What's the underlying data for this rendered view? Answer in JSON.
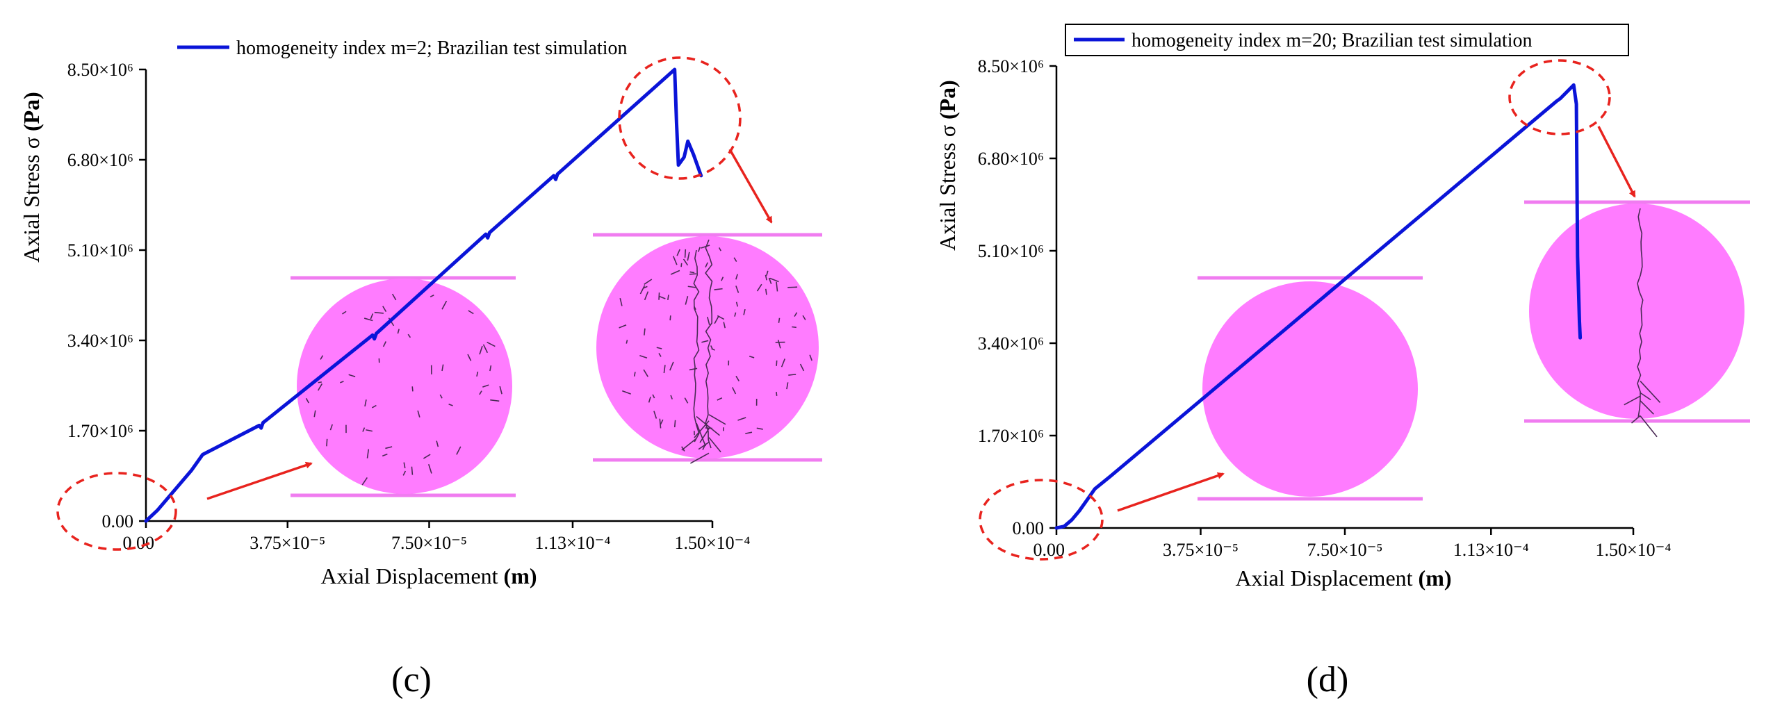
{
  "colors": {
    "series": "#0a14d8",
    "sample": "#ff7cff",
    "platen": "#f07cf0",
    "callout": "#e8231e",
    "axis": "#000000"
  },
  "chart_data": [
    {
      "type": "line",
      "panel_label": "(c)",
      "legend": "homogeneity index m=2; Brazilian test simulation",
      "xlabel_text": "Axial Displacement ",
      "xlabel_unit": "(m)",
      "ylabel_text": "Axial Stress σ ",
      "ylabel_unit": "(Pa)",
      "xlim": [
        0,
        0.00015
      ],
      "ylim": [
        0,
        8500000
      ],
      "x_ticks": [
        0,
        3.75e-05,
        7.5e-05,
        0.000113,
        0.00015
      ],
      "x_tick_labels": [
        "0.00",
        "3.75×10⁻⁵",
        "7.50×10⁻⁵",
        "1.13×10⁻⁴",
        "1.50×10⁻⁴"
      ],
      "y_ticks": [
        0,
        1700000,
        3400000,
        5100000,
        6800000,
        8500000
      ],
      "y_tick_labels": [
        "0.00",
        "1.70×10⁶",
        "3.40×10⁶",
        "5.10×10⁶",
        "6.80×10⁶",
        "8.50×10⁶"
      ],
      "series": [
        {
          "name": "homogeneity index m=2; Brazilian test simulation",
          "x": [
            0,
            3e-06,
            6e-06,
            9e-06,
            1.2e-05,
            1.5e-05,
            3e-05,
            3.05e-05,
            3.1e-05,
            6e-05,
            6.05e-05,
            6.1e-05,
            9e-05,
            9.05e-05,
            9.1e-05,
            0.000108,
            0.0001085,
            0.000109,
            0.00014,
            0.0001405,
            0.000141,
            0.0001425,
            0.0001435,
            0.000145,
            0.000147
          ],
          "y": [
            0,
            200000,
            450000,
            700000,
            950000,
            1250000,
            1800000,
            1750000,
            1850000,
            3500000,
            3430000,
            3530000,
            5400000,
            5330000,
            5430000,
            6500000,
            6430000,
            6530000,
            8500000,
            7500000,
            6700000,
            6850000,
            7150000,
            6900000,
            6500000
          ]
        }
      ],
      "annotations": [
        "origin callout",
        "peak callout",
        "sample before failure",
        "sample after failure with vertical cracks"
      ]
    },
    {
      "type": "line",
      "panel_label": "(d)",
      "legend": "homogeneity index m=20; Brazilian test simulation",
      "xlabel_text": "Axial Displacement ",
      "xlabel_unit": "(m)",
      "ylabel_text": "Axial Stress σ ",
      "ylabel_unit": "(Pa)",
      "xlim": [
        0,
        0.00015
      ],
      "ylim": [
        0,
        8500000
      ],
      "x_ticks": [
        0,
        3.75e-05,
        7.5e-05,
        0.000113,
        0.00015
      ],
      "x_tick_labels": [
        "0.00",
        "3.75×10⁻⁵",
        "7.50×10⁻⁵",
        "1.13×10⁻⁴",
        "1.50×10⁻⁴"
      ],
      "y_ticks": [
        0,
        1700000,
        3400000,
        5100000,
        6800000,
        8500000
      ],
      "y_tick_labels": [
        "0.00",
        "1.70×10⁶",
        "3.40×10⁶",
        "5.10×10⁶",
        "6.80×10⁶",
        "8.50×10⁶"
      ],
      "series": [
        {
          "name": "homogeneity index m=20; Brazilian test simulation",
          "x": [
            0,
            2e-06,
            4e-06,
            6e-06,
            8e-06,
            1e-05,
            1.4e-05,
            0.00013,
            0.000131,
            0.0001345,
            0.0001352,
            0.0001355,
            0.000136,
            0.0001362
          ],
          "y": [
            0,
            30000,
            150000,
            320000,
            520000,
            720000,
            950000,
            7850000,
            7900000,
            8150000,
            7800000,
            5000000,
            3800000,
            3500000
          ]
        }
      ],
      "annotations": [
        "origin callout",
        "peak callout",
        "sample before failure",
        "sample after failure with single vertical crack"
      ]
    }
  ]
}
